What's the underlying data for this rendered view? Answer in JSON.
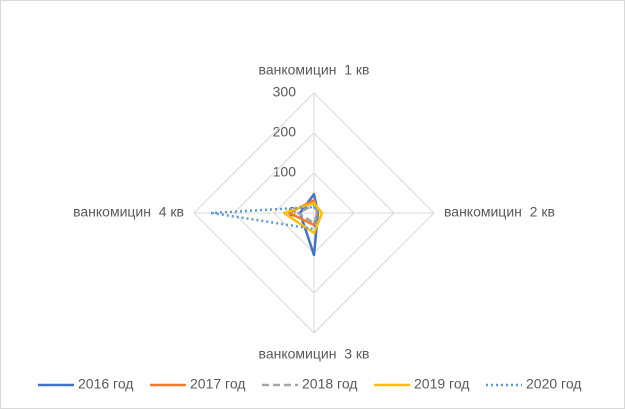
{
  "chart_data": {
    "type": "radar",
    "categories": [
      "ванкомицин  1 кв",
      "ванкомицин  2 кв",
      "ванкомицин  3 кв",
      "ванкомицин  4 кв"
    ],
    "series": [
      {
        "name": "2016 год",
        "color": "#4472c4",
        "dash": "solid",
        "values": [
          47,
          10,
          105,
          35
        ]
      },
      {
        "name": "2017 год",
        "color": "#ed7d31",
        "dash": "solid",
        "values": [
          32,
          8,
          30,
          62
        ]
      },
      {
        "name": "2018 год",
        "color": "#a5a5a5",
        "dash": "dashed",
        "values": [
          20,
          10,
          25,
          40
        ]
      },
      {
        "name": "2019 год",
        "color": "#ffc000",
        "dash": "solid",
        "values": [
          25,
          20,
          50,
          75
        ]
      },
      {
        "name": "2020 год",
        "color": "#5b9bd5",
        "dash": "dotted",
        "values": [
          15,
          10,
          40,
          255
        ]
      }
    ],
    "rlim": [
      0,
      300
    ],
    "rticks": [
      0,
      100,
      200,
      300
    ],
    "grid": true,
    "legend": "bottom"
  }
}
